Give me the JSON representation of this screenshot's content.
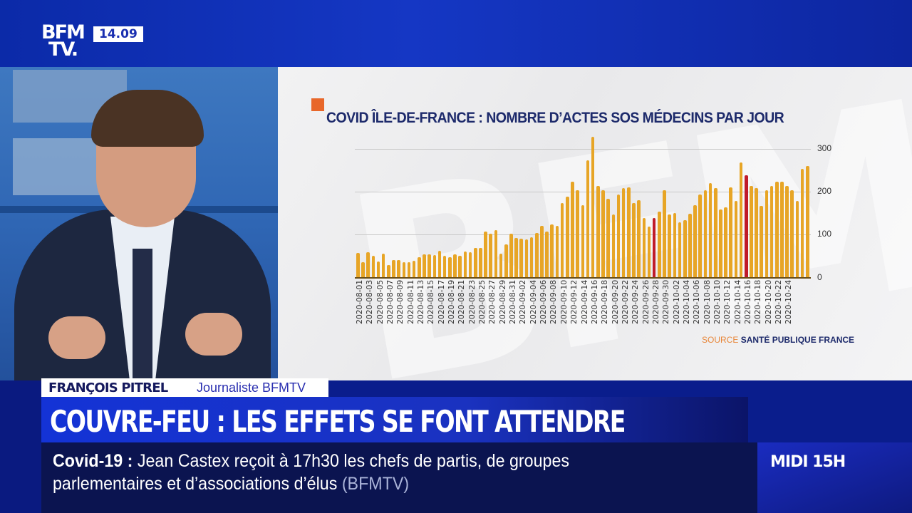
{
  "channel": {
    "logo_line1": "BFM",
    "logo_line2": "TV.",
    "clock": "14.09"
  },
  "chart": {
    "title": "COVID ÎLE-DE-FRANCE : NOMBRE D’ACTES SOS MÉDECINS PAR JOUR",
    "source_label": "SOURCE",
    "source_value": "SANTÉ PUBLIQUE FRANCE",
    "accent_color": "#e8672a",
    "bar_color": "#e7a526",
    "highlight_color": "#c01b2a"
  },
  "chart_data": {
    "type": "bar",
    "title": "COVID ÎLE-DE-FRANCE : NOMBRE D’ACTES SOS MÉDECINS PAR JOUR",
    "xlabel": "",
    "ylabel": "",
    "ylim": [
      0,
      300
    ],
    "yticks": [
      0,
      100,
      200,
      300
    ],
    "y_axis_position": "right",
    "grid": true,
    "x_tick_labels": [
      "2020-08-01",
      "2020-08-03",
      "2020-08-05",
      "2020-08-07",
      "2020-08-09",
      "2020-08-11",
      "2020-08-13",
      "2020-08-15",
      "2020-08-17",
      "2020-08-19",
      "2020-08-21",
      "2020-08-23",
      "2020-08-25",
      "2020-08-27",
      "2020-08-29",
      "2020-08-31",
      "2020-09-02",
      "2020-09-04",
      "2020-09-06",
      "2020-09-08",
      "2020-09-10",
      "2020-09-12",
      "2020-09-14",
      "2020-09-16",
      "2020-09-18",
      "2020-09-20",
      "2020-09-22",
      "2020-09-24",
      "2020-09-26",
      "2020-09-28",
      "2020-09-30",
      "2020-10-02",
      "2020-10-04",
      "2020-10-06",
      "2020-10-08",
      "2020-10-10",
      "2020-10-12",
      "2020-10-14",
      "2020-10-16",
      "2020-10-18",
      "2020-10-20",
      "2020-10-22",
      "2020-10-24"
    ],
    "start_date": "2020-08-01",
    "end_date": "2020-10-25",
    "values": [
      58,
      37,
      60,
      52,
      38,
      57,
      30,
      42,
      42,
      36,
      36,
      40,
      48,
      55,
      55,
      53,
      63,
      52,
      48,
      55,
      52,
      62,
      60,
      70,
      70,
      108,
      103,
      112,
      57,
      78,
      103,
      93,
      92,
      90,
      95,
      105,
      122,
      108,
      125,
      122,
      175,
      190,
      225,
      205,
      170,
      275,
      330,
      215,
      205,
      185,
      148,
      195,
      210,
      212,
      175,
      182,
      140,
      120,
      140,
      155,
      205,
      148,
      152,
      130,
      135,
      150,
      170,
      195,
      205,
      222,
      210,
      160,
      165,
      212,
      180,
      270,
      240,
      215,
      210,
      168,
      205,
      215,
      225,
      225,
      215,
      205,
      180,
      255,
      262
    ],
    "highlighted_bars": [
      {
        "date": "2020-09-28",
        "color": "red"
      },
      {
        "date": "2020-10-16",
        "color": "red"
      }
    ],
    "source": "SOURCE SANTÉ PUBLIQUE FRANCE"
  },
  "guest": {
    "name": "FRANÇOIS PITREL",
    "role": "Journaliste BFMTV"
  },
  "headline": "COUVRE-FEU : LES EFFETS SE FONT ATTENDRE",
  "ticker": {
    "topic": "Covid-19 :",
    "line1": "Jean Castex reçoit à 17h30 les chefs de partis, de groupes",
    "line2": "parlementaires et d’associations d’élus",
    "source": "(BFMTV)"
  },
  "program": "MIDI 15H"
}
